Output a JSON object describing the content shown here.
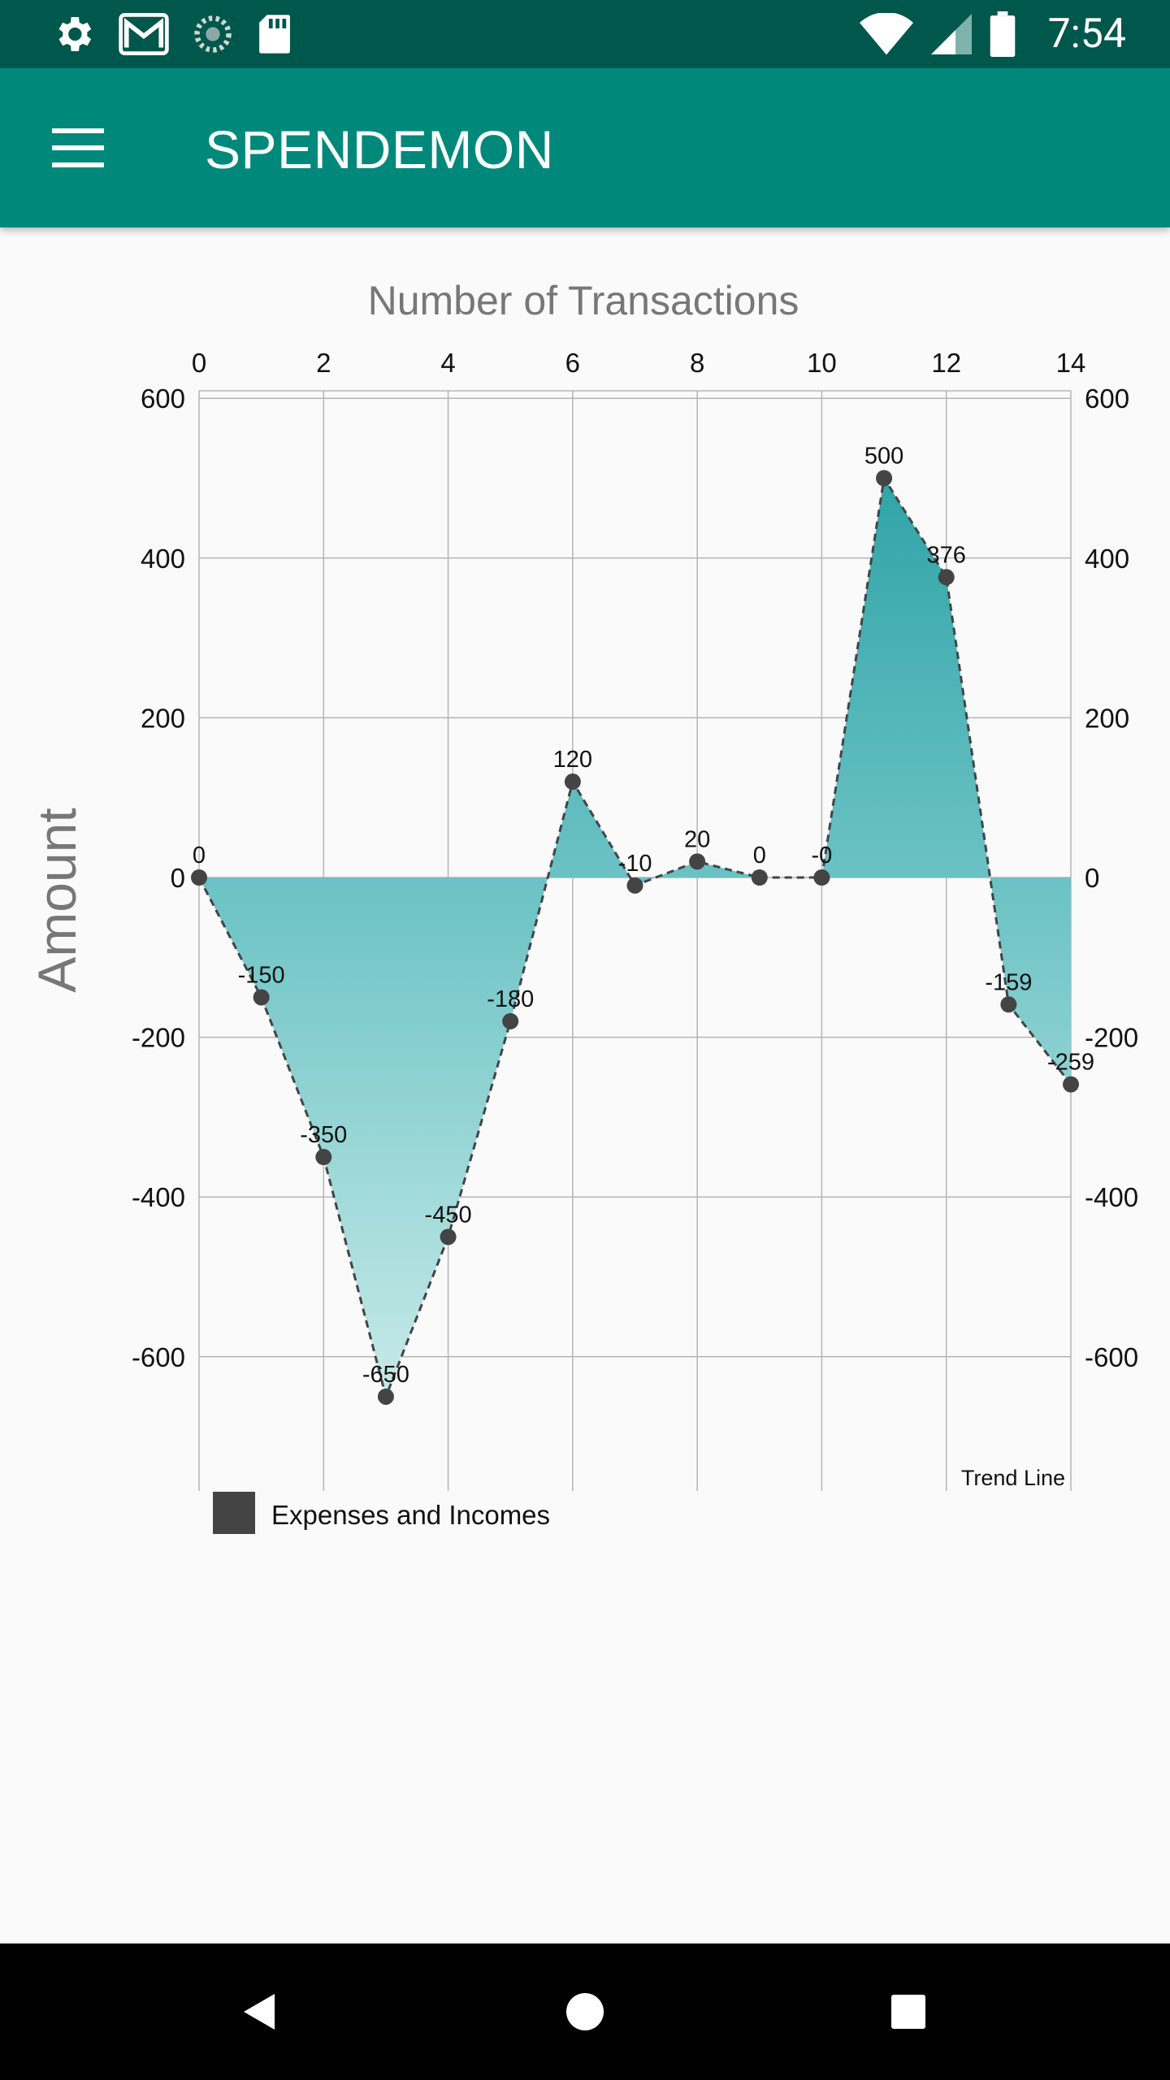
{
  "status_bar": {
    "time": "7:54",
    "icons_left": [
      "settings-icon",
      "gmail-icon",
      "sync-icon",
      "sd-card-icon"
    ],
    "icons_right": [
      "wifi-icon",
      "signal-icon",
      "battery-icon"
    ]
  },
  "app_bar": {
    "title": "SPENDEMON",
    "menu_icon": "hamburger-menu-icon"
  },
  "chart_data": {
    "type": "area",
    "title": "Number of Transactions",
    "ylabel": "Amount",
    "x_ticks": [
      "0",
      "2",
      "4",
      "6",
      "8",
      "10",
      "12",
      "14"
    ],
    "y_ticks": [
      "600",
      "400",
      "200",
      "0",
      "-200",
      "-400",
      "-600"
    ],
    "xlim": [
      0,
      14
    ],
    "ylim": [
      -760,
      610
    ],
    "grid": true,
    "series": [
      {
        "name": "Expenses and Incomes",
        "x": [
          0,
          1,
          2,
          3,
          4,
          5,
          6,
          7,
          8,
          9,
          10,
          11,
          12,
          13,
          14
        ],
        "values": [
          0,
          -150,
          -350,
          -650,
          -450,
          -180,
          120,
          -10,
          20,
          0,
          0,
          500,
          376,
          -159,
          -259
        ],
        "data_labels": [
          "0",
          "-150",
          "-350",
          "-650",
          "-450",
          "-180",
          "120",
          "-10",
          "20",
          "0",
          "-0",
          "500",
          "376",
          "-159",
          "-259"
        ]
      }
    ],
    "trend_label": "Trend Line",
    "legend": {
      "placement": "bottom-left",
      "label": "Expenses and Incomes"
    },
    "colors": {
      "fill_top": "#2fa4a8",
      "fill_mid": "#74c6c8",
      "fill_bottom": "#c6eae8",
      "line": "#444444",
      "point": "#444444",
      "grid": "#b5b5b5",
      "title": "#777777"
    }
  },
  "nav_bar": {
    "back_icon": "back-triangle-icon",
    "home_icon": "home-circle-icon",
    "recents_icon": "recents-square-icon"
  }
}
